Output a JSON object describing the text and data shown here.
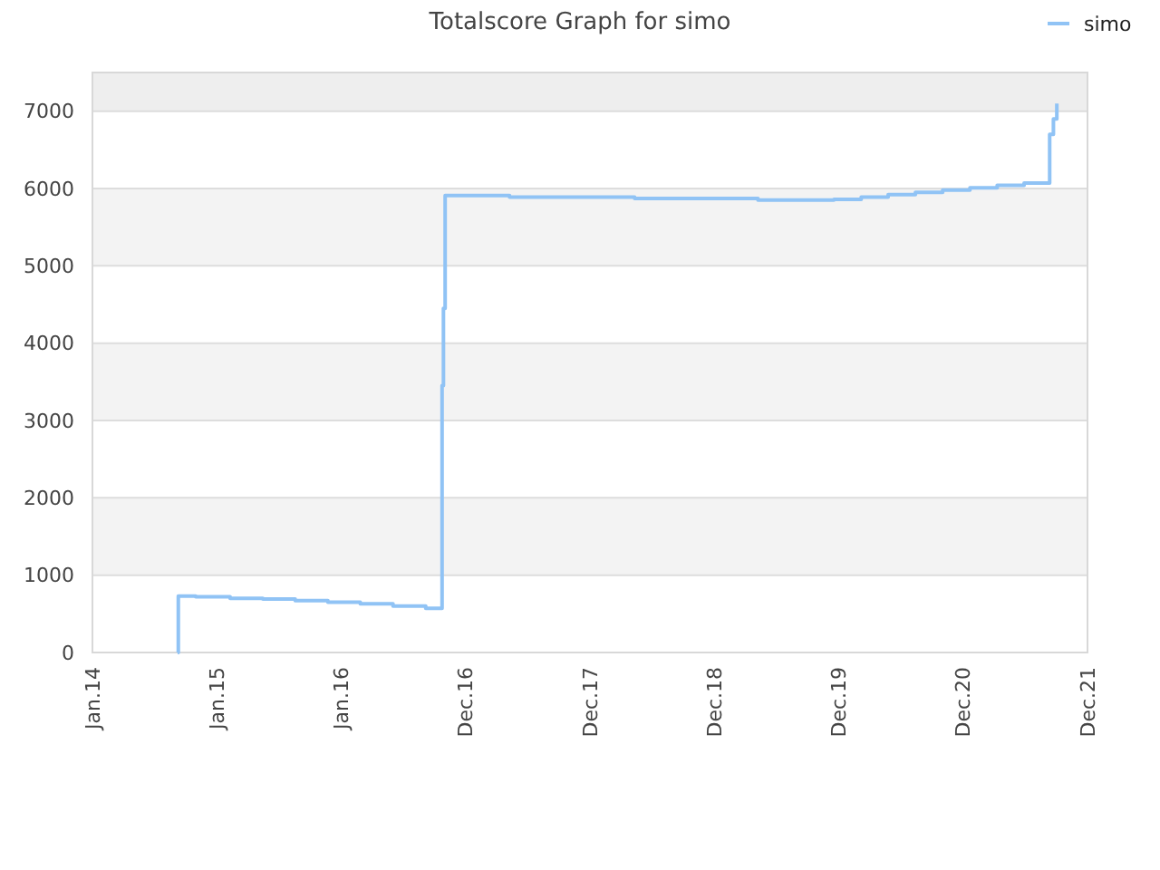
{
  "chart_data": {
    "type": "step",
    "title": "Totalscore Graph for simo",
    "x": [
      "2014-09-08",
      "2014-09-10",
      "2014-10-31",
      "2015-02-09",
      "2015-05-16",
      "2015-08-19",
      "2015-11-23",
      "2016-02-26",
      "2016-06-01",
      "2016-09-05",
      "2016-10-23",
      "2016-10-27",
      "2016-11-01",
      "2017-05-09",
      "2018-05-11",
      "2019-05-08",
      "2019-12-17",
      "2020-03-06",
      "2020-05-24",
      "2020-08-12",
      "2020-10-31",
      "2021-01-19",
      "2021-04-09",
      "2021-06-27",
      "2021-09-10",
      "2021-09-21",
      "2021-10-01"
    ],
    "series": [
      {
        "name": "simo",
        "color": "#90c3f5",
        "values": [
          0,
          730,
          720,
          700,
          690,
          670,
          650,
          630,
          600,
          570,
          3450,
          4450,
          5910,
          5890,
          5870,
          5850,
          5860,
          5890,
          5920,
          5950,
          5980,
          6010,
          6040,
          6070,
          6700,
          6900,
          7100
        ]
      }
    ],
    "xlim": [
      "2014-01-01",
      "2021-12-30"
    ],
    "xticks": [
      {
        "value": "2014-01-01",
        "label": "Jan.14"
      },
      {
        "value": "2015-01-01",
        "label": "Jan.15"
      },
      {
        "value": "2016-01-01",
        "label": "Jan.16"
      },
      {
        "value": "2016-12-31",
        "label": "Dec.16"
      },
      {
        "value": "2017-12-31",
        "label": "Dec.17"
      },
      {
        "value": "2018-12-31",
        "label": "Dec.18"
      },
      {
        "value": "2019-12-31",
        "label": "Dec.19"
      },
      {
        "value": "2020-12-30",
        "label": "Dec.20"
      },
      {
        "value": "2021-12-30",
        "label": "Dec.21"
      }
    ],
    "ylim": [
      0,
      7500
    ],
    "yticks": [
      0,
      1000,
      2000,
      3000,
      4000,
      5000,
      6000,
      7000
    ],
    "bands": [
      {
        "axis": "y",
        "from": 7000,
        "to": 7500,
        "color": "#eeeeee"
      }
    ],
    "grid": "y",
    "legend": "top right",
    "marker": "none",
    "line_style": "solid"
  }
}
